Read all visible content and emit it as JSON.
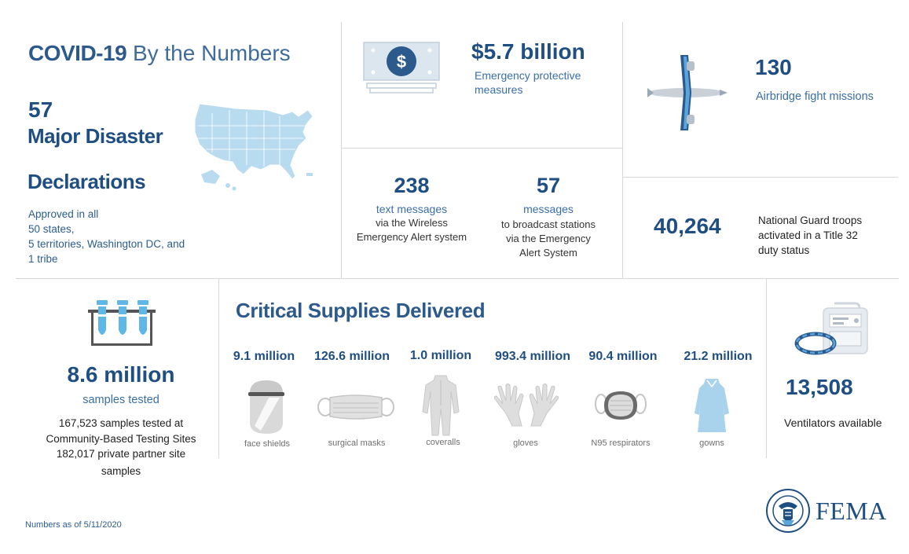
{
  "header": {
    "title_strong": "COVID-19",
    "title_rest": "By the Numbers"
  },
  "declarations": {
    "number": "57",
    "label_line1": "Major Disaster",
    "label_line2": "Declarations",
    "desc": [
      "Approved in all",
      "50 states,",
      "5 territories, Washington DC, and",
      "1 tribe"
    ]
  },
  "protective": {
    "amount": "$5.7 billion",
    "desc_line1": "Emergency protective",
    "desc_line2": "measures"
  },
  "airbridge": {
    "number": "130",
    "desc": "Airbridge fight missions"
  },
  "wea": {
    "number": "238",
    "label": "text messages",
    "desc_line1": "via the Wireless",
    "desc_line2": "Emergency Alert system"
  },
  "eas": {
    "number": "57",
    "label": "messages",
    "desc_line1": "to broadcast stations",
    "desc_line2": "via the Emergency",
    "desc_line3": "Alert System"
  },
  "guard": {
    "number": "40,264",
    "desc_line1": "National Guard troops",
    "desc_line2": "activated in a Title 32",
    "desc_line3": "duty status"
  },
  "testing": {
    "number": "8.6 million",
    "label": "samples tested",
    "desc_line1": "167,523 samples tested at",
    "desc_line2": "Community-Based Testing Sites",
    "desc_line3": "182,017 private partner site",
    "desc_line4": "samples"
  },
  "supplies": {
    "heading": "Critical Supplies Delivered",
    "items": [
      {
        "value": "9.1 million",
        "label": "face shields",
        "icon": "face-shield-icon"
      },
      {
        "value": "126.6 million",
        "label": "surgical masks",
        "icon": "surgical-mask-icon"
      },
      {
        "value": "1.0 million",
        "label": "coveralls",
        "icon": "coveralls-icon"
      },
      {
        "value": "993.4 million",
        "label": "gloves",
        "icon": "gloves-icon"
      },
      {
        "value": "90.4 million",
        "label": "N95 respirators",
        "icon": "n95-respirator-icon"
      },
      {
        "value": "21.2 million",
        "label": "gowns",
        "icon": "gown-icon"
      }
    ]
  },
  "ventilators": {
    "number": "13,508",
    "desc": "Ventilators available"
  },
  "footer": {
    "note": "Numbers as of 5/11/2020",
    "logo_text": "FEMA",
    "seal_text": "DEPARTMENT OF HOMELAND SECURITY"
  },
  "colors": {
    "navy": "#1f4e82",
    "light_blue": "#a9d3ec",
    "divider": "#d8d8d8"
  }
}
